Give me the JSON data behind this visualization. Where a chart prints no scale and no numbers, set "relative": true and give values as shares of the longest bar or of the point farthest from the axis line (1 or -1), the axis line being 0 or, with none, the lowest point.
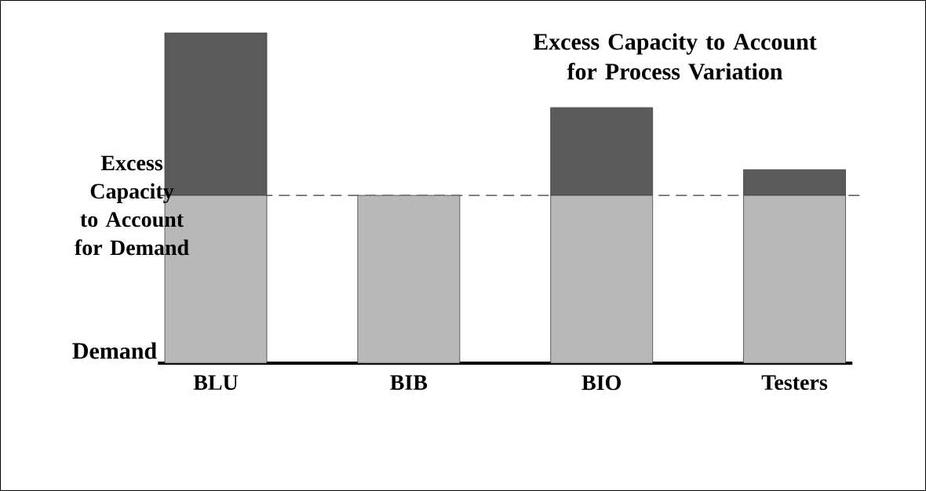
{
  "chart_data": {
    "type": "bar",
    "stacked": true,
    "relative": true,
    "categories": [
      "BLU",
      "BIB",
      "BIO",
      "Testers"
    ],
    "series": [
      {
        "name": "Demand",
        "color": "#b8b8b8",
        "values": [
          0.508,
          0.508,
          0.508,
          0.508
        ]
      },
      {
        "name": "Excess Capacity to Account for Process Variation",
        "color": "#5a5a5a",
        "values": [
          0.492,
          0,
          0.266,
          0.078
        ]
      }
    ],
    "ref_lines": [
      {
        "axis": "y",
        "value": 0.508,
        "label": "Excess Capacity to Account for Demand",
        "line_style": "dashed"
      }
    ]
  }
}
